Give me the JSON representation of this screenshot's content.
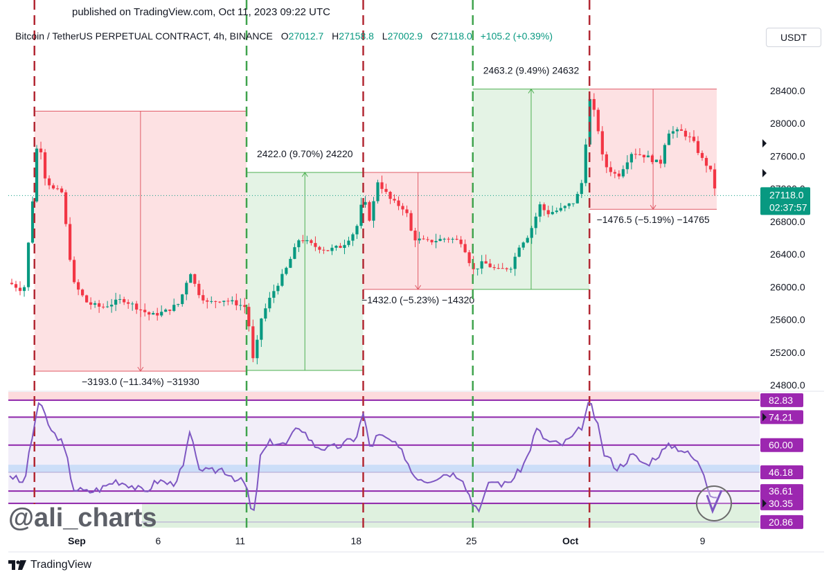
{
  "published": "published on TradingView.com, Oct 11, 2023 09:22 UTC",
  "header": {
    "symbol": "Bitcoin / TetherUS PERPETUAL CONTRACT, 4h, BINANCE",
    "o_label": "O",
    "o": "27012.7",
    "h_label": "H",
    "h": "27158.8",
    "l_label": "L",
    "l": "27002.9",
    "c_label": "C",
    "c": "27118.0",
    "change": "+105.2 (+0.39%)"
  },
  "currency_button": "USDT",
  "watermark": "@ali_charts",
  "brand": "TradingView",
  "chart_data": {
    "type": "candlestick",
    "price_axis": {
      "ticks": [
        "28400.0",
        "28000.0",
        "27600.0",
        "27200.0",
        "26800.0",
        "26400.0",
        "26000.0",
        "25600.0",
        "25200.0",
        "24800.0"
      ],
      "range": [
        24750,
        28950
      ]
    },
    "current_price": {
      "value": "27118.0",
      "countdown": "02:37:57",
      "color": "#089981"
    },
    "x_axis_labels": [
      {
        "label": "Sep",
        "bold": true,
        "t": 0.095
      },
      {
        "label": "6",
        "bold": false,
        "t": 0.21
      },
      {
        "label": "11",
        "bold": false,
        "t": 0.326
      },
      {
        "label": "18",
        "bold": false,
        "t": 0.49
      },
      {
        "label": "25",
        "bold": false,
        "t": 0.653
      },
      {
        "label": "Oct",
        "bold": true,
        "t": 0.793
      },
      {
        "label": "9",
        "bold": false,
        "t": 0.98
      }
    ],
    "price_path": [
      {
        "t": 0.0,
        "p": 26050
      },
      {
        "t": 0.02,
        "p": 25950
      },
      {
        "t": 0.035,
        "p": 27300
      },
      {
        "t": 0.04,
        "p": 27900
      },
      {
        "t": 0.05,
        "p": 27350
      },
      {
        "t": 0.06,
        "p": 27200
      },
      {
        "t": 0.075,
        "p": 27150
      },
      {
        "t": 0.08,
        "p": 26700
      },
      {
        "t": 0.09,
        "p": 26050
      },
      {
        "t": 0.11,
        "p": 25800
      },
      {
        "t": 0.13,
        "p": 25750
      },
      {
        "t": 0.16,
        "p": 25850
      },
      {
        "t": 0.18,
        "p": 25750
      },
      {
        "t": 0.2,
        "p": 25650
      },
      {
        "t": 0.22,
        "p": 25700
      },
      {
        "t": 0.24,
        "p": 25800
      },
      {
        "t": 0.255,
        "p": 26200
      },
      {
        "t": 0.265,
        "p": 25950
      },
      {
        "t": 0.28,
        "p": 25800
      },
      {
        "t": 0.3,
        "p": 25850
      },
      {
        "t": 0.32,
        "p": 25800
      },
      {
        "t": 0.335,
        "p": 25750
      },
      {
        "t": 0.345,
        "p": 25050
      },
      {
        "t": 0.355,
        "p": 25600
      },
      {
        "t": 0.37,
        "p": 25900
      },
      {
        "t": 0.39,
        "p": 26200
      },
      {
        "t": 0.41,
        "p": 26600
      },
      {
        "t": 0.43,
        "p": 26500
      },
      {
        "t": 0.45,
        "p": 26450
      },
      {
        "t": 0.47,
        "p": 26500
      },
      {
        "t": 0.49,
        "p": 26700
      },
      {
        "t": 0.5,
        "p": 27100
      },
      {
        "t": 0.51,
        "p": 26800
      },
      {
        "t": 0.52,
        "p": 27300
      },
      {
        "t": 0.54,
        "p": 27050
      },
      {
        "t": 0.56,
        "p": 26950
      },
      {
        "t": 0.57,
        "p": 26600
      },
      {
        "t": 0.59,
        "p": 26550
      },
      {
        "t": 0.62,
        "p": 26600
      },
      {
        "t": 0.64,
        "p": 26550
      },
      {
        "t": 0.655,
        "p": 26200
      },
      {
        "t": 0.67,
        "p": 26300
      },
      {
        "t": 0.69,
        "p": 26200
      },
      {
        "t": 0.71,
        "p": 26250
      },
      {
        "t": 0.72,
        "p": 26500
      },
      {
        "t": 0.735,
        "p": 26650
      },
      {
        "t": 0.75,
        "p": 27000
      },
      {
        "t": 0.76,
        "p": 26900
      },
      {
        "t": 0.78,
        "p": 26950
      },
      {
        "t": 0.8,
        "p": 27050
      },
      {
        "t": 0.81,
        "p": 27300
      },
      {
        "t": 0.82,
        "p": 28300
      },
      {
        "t": 0.83,
        "p": 28050
      },
      {
        "t": 0.84,
        "p": 27500
      },
      {
        "t": 0.86,
        "p": 27350
      },
      {
        "t": 0.88,
        "p": 27650
      },
      {
        "t": 0.9,
        "p": 27600
      },
      {
        "t": 0.92,
        "p": 27500
      },
      {
        "t": 0.93,
        "p": 27900
      },
      {
        "t": 0.95,
        "p": 27900
      },
      {
        "t": 0.965,
        "p": 27800
      },
      {
        "t": 0.98,
        "p": 27550
      },
      {
        "t": 0.99,
        "p": 27450
      },
      {
        "t": 1.0,
        "p": 27118
      }
    ],
    "cycle_lines": [
      {
        "t": 0.035,
        "color": "#b22833"
      },
      {
        "t": 0.335,
        "color": "#3fa34d"
      },
      {
        "t": 0.5,
        "color": "#b22833"
      },
      {
        "t": 0.655,
        "color": "#3fa34d"
      },
      {
        "t": 0.82,
        "color": "#b22833"
      }
    ],
    "ranges": [
      {
        "kind": "down",
        "t0": 0.035,
        "t1": 0.335,
        "top": 28150,
        "bottom": 24970,
        "label": "−3193.0 (−11.34%) −31930"
      },
      {
        "kind": "up",
        "t0": 0.335,
        "t1": 0.5,
        "top": 27400,
        "bottom": 24980,
        "label": "2422.0 (9.70%) 24220"
      },
      {
        "kind": "down",
        "t0": 0.5,
        "t1": 0.655,
        "top": 27400,
        "bottom": 25970,
        "label": "−1432.0 (−5.23%) −14320"
      },
      {
        "kind": "up",
        "t0": 0.655,
        "t1": 0.82,
        "top": 28420,
        "bottom": 25970,
        "label": "2463.2 (9.49%) 24632"
      },
      {
        "kind": "down",
        "t0": 0.82,
        "t1": 1.0,
        "top": 28420,
        "bottom": 26950,
        "label": "−1476.5 (−5.19%) −14765"
      }
    ],
    "rsi": {
      "levels": [
        {
          "value": 82.83,
          "label": "82.83"
        },
        {
          "value": 74.21,
          "label": "74.21"
        },
        {
          "value": 60.0,
          "label": "60.00"
        },
        {
          "value": 46.18,
          "label": "46.18"
        },
        {
          "value": 36.61,
          "label": "36.61"
        },
        {
          "value": 30.35,
          "label": "30.35"
        },
        {
          "value": 20.86,
          "label": "20.86"
        }
      ],
      "range": [
        18,
        87
      ],
      "line_color": "#7e57c2",
      "path": [
        {
          "t": 0.0,
          "v": 45
        },
        {
          "t": 0.02,
          "v": 40
        },
        {
          "t": 0.035,
          "v": 70
        },
        {
          "t": 0.04,
          "v": 82
        },
        {
          "t": 0.05,
          "v": 75
        },
        {
          "t": 0.06,
          "v": 66
        },
        {
          "t": 0.07,
          "v": 64
        },
        {
          "t": 0.08,
          "v": 55
        },
        {
          "t": 0.09,
          "v": 38
        },
        {
          "t": 0.11,
          "v": 36
        },
        {
          "t": 0.13,
          "v": 38
        },
        {
          "t": 0.15,
          "v": 42
        },
        {
          "t": 0.17,
          "v": 40
        },
        {
          "t": 0.19,
          "v": 36
        },
        {
          "t": 0.21,
          "v": 42
        },
        {
          "t": 0.23,
          "v": 40
        },
        {
          "t": 0.245,
          "v": 48
        },
        {
          "t": 0.255,
          "v": 67
        },
        {
          "t": 0.265,
          "v": 50
        },
        {
          "t": 0.28,
          "v": 46
        },
        {
          "t": 0.3,
          "v": 48
        },
        {
          "t": 0.32,
          "v": 43
        },
        {
          "t": 0.335,
          "v": 40
        },
        {
          "t": 0.34,
          "v": 28
        },
        {
          "t": 0.345,
          "v": 24
        },
        {
          "t": 0.355,
          "v": 55
        },
        {
          "t": 0.37,
          "v": 62
        },
        {
          "t": 0.39,
          "v": 60
        },
        {
          "t": 0.41,
          "v": 70
        },
        {
          "t": 0.43,
          "v": 60
        },
        {
          "t": 0.45,
          "v": 58
        },
        {
          "t": 0.47,
          "v": 60
        },
        {
          "t": 0.49,
          "v": 64
        },
        {
          "t": 0.5,
          "v": 76
        },
        {
          "t": 0.51,
          "v": 58
        },
        {
          "t": 0.52,
          "v": 65
        },
        {
          "t": 0.54,
          "v": 62
        },
        {
          "t": 0.56,
          "v": 54
        },
        {
          "t": 0.57,
          "v": 45
        },
        {
          "t": 0.59,
          "v": 42
        },
        {
          "t": 0.62,
          "v": 46
        },
        {
          "t": 0.64,
          "v": 44
        },
        {
          "t": 0.655,
          "v": 30
        },
        {
          "t": 0.665,
          "v": 28
        },
        {
          "t": 0.68,
          "v": 42
        },
        {
          "t": 0.7,
          "v": 40
        },
        {
          "t": 0.715,
          "v": 44
        },
        {
          "t": 0.73,
          "v": 52
        },
        {
          "t": 0.745,
          "v": 68
        },
        {
          "t": 0.76,
          "v": 62
        },
        {
          "t": 0.78,
          "v": 60
        },
        {
          "t": 0.8,
          "v": 65
        },
        {
          "t": 0.81,
          "v": 70
        },
        {
          "t": 0.82,
          "v": 82
        },
        {
          "t": 0.83,
          "v": 72
        },
        {
          "t": 0.84,
          "v": 56
        },
        {
          "t": 0.86,
          "v": 48
        },
        {
          "t": 0.88,
          "v": 55
        },
        {
          "t": 0.9,
          "v": 50
        },
        {
          "t": 0.92,
          "v": 56
        },
        {
          "t": 0.935,
          "v": 60
        },
        {
          "t": 0.95,
          "v": 58
        },
        {
          "t": 0.965,
          "v": 54
        },
        {
          "t": 0.98,
          "v": 48
        },
        {
          "t": 0.99,
          "v": 36
        },
        {
          "t": 1.0,
          "v": 34
        }
      ]
    }
  }
}
